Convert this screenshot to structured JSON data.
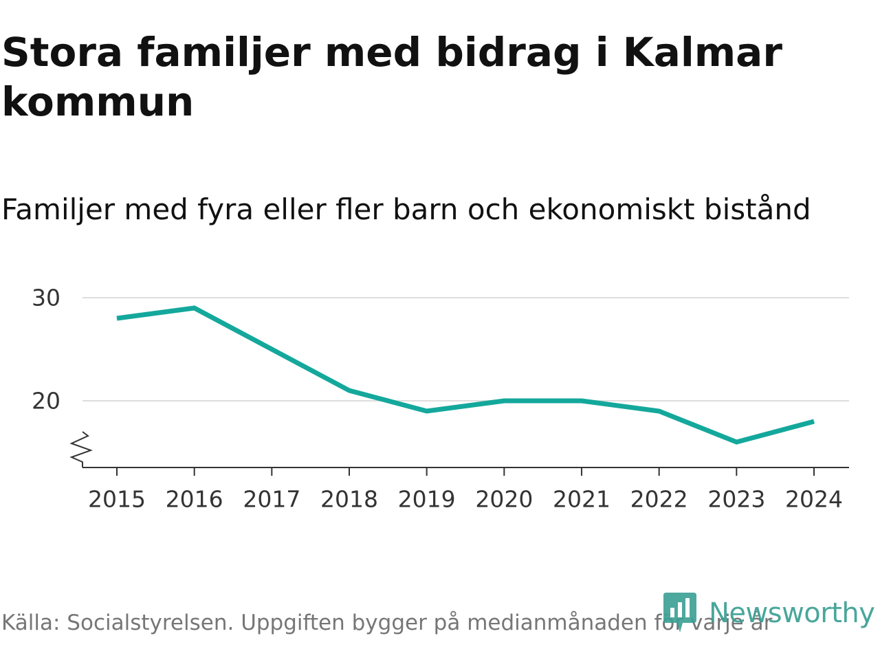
{
  "header": {
    "title": "Stora familjer med bidrag i Kalmar kommun",
    "subtitle": "Familjer med fyra eller fler barn och ekonomiskt bistånd"
  },
  "footer": {
    "source": "Källa: Socialstyrelsen. Uppgiften bygger på medianmånaden för varje år",
    "brand": "Newsworthy"
  },
  "colors": {
    "line": "#14a89c",
    "grid": "#dddddd",
    "axis": "#333333",
    "brand": "#3a9f93"
  },
  "chart_data": {
    "type": "line",
    "title": "Stora familjer med bidrag i Kalmar kommun",
    "subtitle": "Familjer med fyra eller fler barn och ekonomiskt bistånd",
    "xlabel": "",
    "ylabel": "",
    "x": [
      "2015",
      "2016",
      "2017",
      "2018",
      "2019",
      "2020",
      "2021",
      "2022",
      "2023",
      "2024"
    ],
    "series": [
      {
        "name": "Familjer med fyra eller fler barn och ekonomiskt bistånd",
        "values": [
          28,
          29,
          25,
          21,
          19,
          20,
          20,
          19,
          16,
          18
        ]
      }
    ],
    "y_ticks": [
      20,
      30
    ],
    "ylim": [
      14,
      30
    ],
    "y_axis_break": true,
    "grid": true
  }
}
